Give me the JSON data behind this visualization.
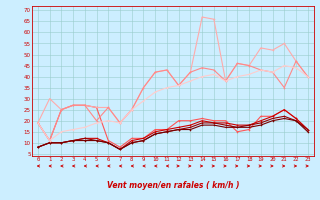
{
  "x": [
    0,
    1,
    2,
    3,
    4,
    5,
    6,
    7,
    8,
    9,
    10,
    11,
    12,
    13,
    14,
    15,
    16,
    17,
    18,
    19,
    20,
    21,
    22,
    23
  ],
  "series": [
    {
      "y": [
        19,
        11,
        25,
        27,
        27,
        26,
        11,
        8,
        12,
        12,
        16,
        16,
        20,
        20,
        21,
        20,
        20,
        15,
        16,
        22,
        22,
        25,
        21,
        16
      ],
      "color": "#ff5555",
      "lw": 0.8
    },
    {
      "y": [
        8,
        10,
        10,
        11,
        12,
        12,
        10,
        7,
        11,
        12,
        15,
        16,
        17,
        18,
        20,
        19,
        19,
        18,
        18,
        20,
        22,
        25,
        21,
        16
      ],
      "color": "#cc0000",
      "lw": 0.8
    },
    {
      "y": [
        8,
        10,
        10,
        11,
        12,
        11,
        10,
        7,
        10,
        11,
        14,
        15,
        16,
        17,
        19,
        19,
        18,
        17,
        18,
        19,
        21,
        22,
        20,
        16
      ],
      "color": "#990000",
      "lw": 0.8
    },
    {
      "y": [
        8,
        10,
        10,
        11,
        11,
        11,
        10,
        7,
        10,
        11,
        14,
        15,
        16,
        16,
        18,
        18,
        17,
        17,
        17,
        18,
        20,
        21,
        20,
        15
      ],
      "color": "#770000",
      "lw": 0.8
    },
    {
      "y": [
        19,
        30,
        25,
        27,
        27,
        26,
        26,
        19,
        25,
        35,
        42,
        43,
        36,
        42,
        67,
        66,
        38,
        46,
        45,
        53,
        52,
        55,
        47,
        40
      ],
      "color": "#ffaaaa",
      "lw": 0.8
    },
    {
      "y": [
        19,
        11,
        25,
        27,
        27,
        20,
        26,
        19,
        25,
        35,
        42,
        43,
        36,
        42,
        44,
        43,
        38,
        46,
        45,
        43,
        42,
        35,
        47,
        40
      ],
      "color": "#ff8888",
      "lw": 0.8
    },
    {
      "y": [
        19,
        11,
        15,
        16,
        17,
        19,
        20,
        19,
        25,
        29,
        33,
        35,
        36,
        38,
        40,
        41,
        38,
        40,
        41,
        43,
        42,
        45,
        44,
        40
      ],
      "color": "#ffcccc",
      "lw": 0.8
    }
  ],
  "xlabel": "Vent moyen/en rafales ( km/h )",
  "ylabel_ticks": [
    5,
    10,
    15,
    20,
    25,
    30,
    35,
    40,
    45,
    50,
    55,
    60,
    65,
    70
  ],
  "xlim": [
    -0.5,
    23.5
  ],
  "ylim": [
    4,
    72
  ],
  "bg_color": "#cceeff",
  "grid_color": "#99cccc",
  "tick_color": "#cc0000",
  "label_color": "#cc0000"
}
